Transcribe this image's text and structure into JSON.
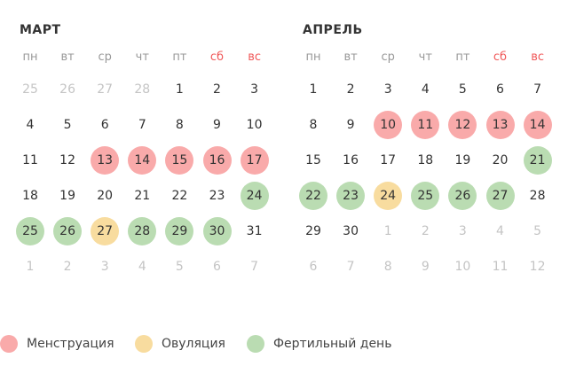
{
  "colors": {
    "menstruation": "#f9aaaa",
    "ovulation": "#f8dc9f",
    "fertile": "#badcb2",
    "weekend": "#f0595a"
  },
  "weekdays": [
    "пн",
    "вт",
    "ср",
    "чт",
    "пт",
    "сб",
    "вс"
  ],
  "months": [
    {
      "title": "МАРТ",
      "days": [
        25,
        26,
        27,
        28,
        1,
        2,
        3,
        4,
        5,
        6,
        7,
        8,
        9,
        10,
        11,
        12,
        13,
        14,
        15,
        16,
        17,
        18,
        19,
        20,
        21,
        22,
        23,
        24,
        25,
        26,
        27,
        28,
        29,
        30,
        31,
        1,
        2,
        3,
        4,
        5,
        6,
        7
      ],
      "types": [
        "o",
        "o",
        "o",
        "o",
        "",
        "",
        "",
        "",
        "",
        "",
        "",
        "",
        "",
        "",
        "",
        "",
        "m",
        "m",
        "m",
        "m",
        "m",
        "",
        "",
        "",
        "",
        "",
        "",
        "f",
        "f",
        "f",
        "v",
        "f",
        "f",
        "f",
        "",
        "o",
        "o",
        "o",
        "o",
        "o",
        "o",
        "o"
      ]
    },
    {
      "title": "АПРЕЛЬ",
      "days": [
        1,
        2,
        3,
        4,
        5,
        6,
        7,
        8,
        9,
        10,
        11,
        12,
        13,
        14,
        15,
        16,
        17,
        18,
        19,
        20,
        21,
        22,
        23,
        24,
        25,
        26,
        27,
        28,
        29,
        30,
        1,
        2,
        3,
        4,
        5,
        6,
        7,
        8,
        9,
        10,
        11,
        12
      ],
      "types": [
        "",
        "",
        "",
        "",
        "",
        "",
        "",
        "",
        "",
        "m",
        "m",
        "m",
        "m",
        "m",
        "",
        "",
        "",
        "",
        "",
        "",
        "f",
        "f",
        "f",
        "v",
        "f",
        "f",
        "f",
        "",
        "",
        "",
        "o",
        "o",
        "o",
        "o",
        "o",
        "o",
        "o",
        "o",
        "o",
        "o",
        "o",
        "o"
      ]
    }
  ],
  "legend": [
    {
      "type": "menstruation",
      "label": "Менструация"
    },
    {
      "type": "ovulation",
      "label": "Овуляция"
    },
    {
      "type": "fertile",
      "label": "Фертильный день"
    }
  ]
}
